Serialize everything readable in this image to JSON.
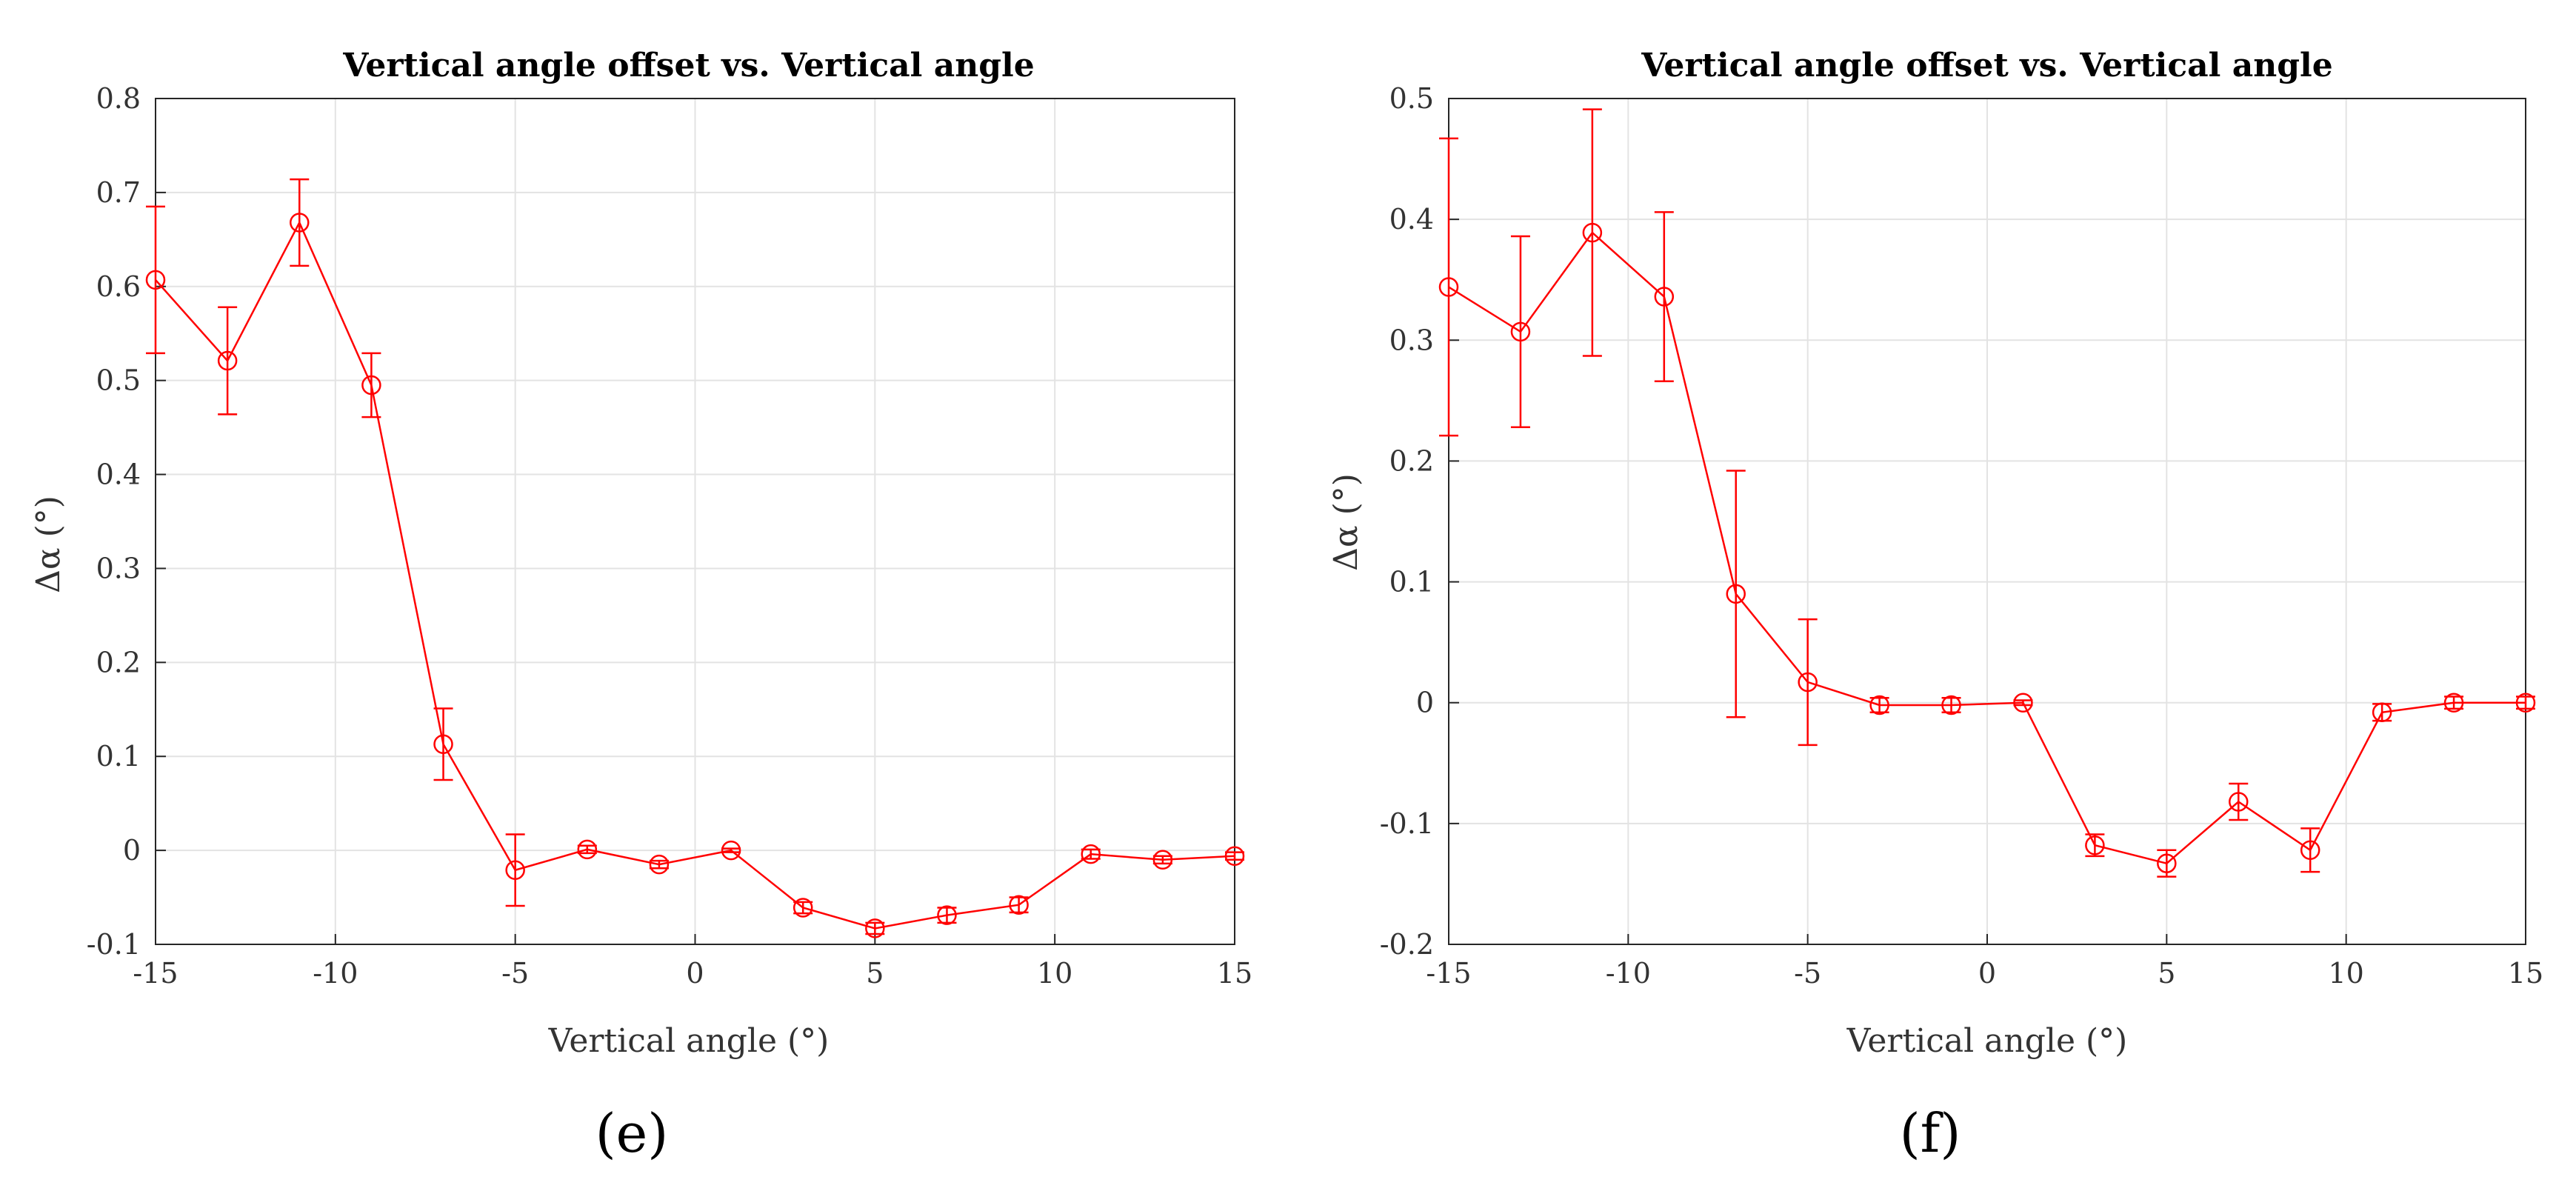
{
  "figure": {
    "panels": [
      "(e)",
      "(f)"
    ]
  },
  "chart_data": [
    {
      "type": "line",
      "panel_label": "(e)",
      "title": "Vertical angle offset vs. Vertical angle",
      "xlabel": "Vertical angle (°)",
      "ylabel": "Δα (°)",
      "xlim": [
        -15,
        15
      ],
      "ylim": [
        -0.1,
        0.8
      ],
      "xticks": [
        -15,
        -10,
        -5,
        0,
        5,
        10,
        15
      ],
      "yticks": [
        -0.1,
        0,
        0.1,
        0.2,
        0.3,
        0.4,
        0.5,
        0.6,
        0.7,
        0.8
      ],
      "xtick_labels": [
        "-15",
        "-10",
        "-5",
        "0",
        "5",
        "10",
        "15"
      ],
      "ytick_labels": [
        "-0.1",
        "0",
        "0.1",
        "0.2",
        "0.3",
        "0.4",
        "0.5",
        "0.6",
        "0.7",
        "0.8"
      ],
      "grid": true,
      "color": "#ff0000",
      "x": [
        -15,
        -13,
        -11,
        -9,
        -7,
        -5,
        -3,
        -1,
        1,
        3,
        5,
        7,
        9,
        11,
        13,
        15
      ],
      "y": [
        0.607,
        0.521,
        0.668,
        0.495,
        0.113,
        -0.021,
        0.001,
        -0.015,
        0.0,
        -0.061,
        -0.083,
        -0.069,
        -0.058,
        -0.004,
        -0.01,
        -0.006
      ],
      "err": [
        0.078,
        0.057,
        0.046,
        0.034,
        0.038,
        0.038,
        0.004,
        0.004,
        0.002,
        0.006,
        0.006,
        0.008,
        0.008,
        0.005,
        0.004,
        0.004
      ]
    },
    {
      "type": "line",
      "panel_label": "(f)",
      "title": "Vertical angle offset vs. Vertical angle",
      "xlabel": "Vertical angle (°)",
      "ylabel": "Δα (°)",
      "xlim": [
        -15,
        15
      ],
      "ylim": [
        -0.2,
        0.5
      ],
      "xticks": [
        -15,
        -10,
        -5,
        0,
        5,
        10,
        15
      ],
      "yticks": [
        -0.2,
        -0.1,
        0,
        0.1,
        0.2,
        0.3,
        0.4,
        0.5
      ],
      "xtick_labels": [
        "-15",
        "-10",
        "-5",
        "0",
        "5",
        "10",
        "15"
      ],
      "ytick_labels": [
        "-0.2",
        "-0.1",
        "0",
        "0.1",
        "0.2",
        "0.3",
        "0.4",
        "0.5"
      ],
      "grid": true,
      "color": "#ff0000",
      "x": [
        -15,
        -13,
        -11,
        -9,
        -7,
        -5,
        -3,
        -1,
        1,
        3,
        5,
        7,
        9,
        11,
        13,
        15
      ],
      "y": [
        0.344,
        0.307,
        0.389,
        0.336,
        0.09,
        0.017,
        -0.002,
        -0.002,
        0.0,
        -0.118,
        -0.133,
        -0.082,
        -0.122,
        -0.008,
        0.0,
        0.0
      ],
      "err": [
        0.123,
        0.079,
        0.102,
        0.07,
        0.102,
        0.052,
        0.006,
        0.006,
        0.002,
        0.009,
        0.011,
        0.015,
        0.018,
        0.007,
        0.005,
        0.005
      ]
    }
  ]
}
